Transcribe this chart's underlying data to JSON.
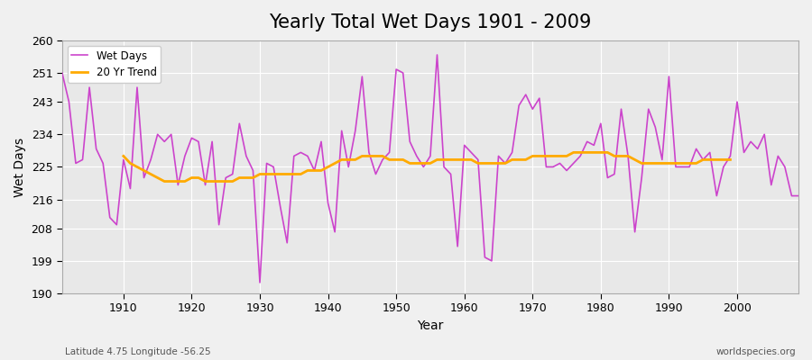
{
  "title": "Yearly Total Wet Days 1901 - 2009",
  "xlabel": "Year",
  "ylabel": "Wet Days",
  "footnote_left": "Latitude 4.75 Longitude -56.25",
  "footnote_right": "worldspecies.org",
  "legend_wet": "Wet Days",
  "legend_trend": "20 Yr Trend",
  "wet_color": "#cc44cc",
  "trend_color": "#ffaa00",
  "ylim": [
    190,
    260
  ],
  "yticks": [
    190,
    199,
    208,
    216,
    225,
    234,
    243,
    251,
    260
  ],
  "years": [
    1901,
    1902,
    1903,
    1904,
    1905,
    1906,
    1907,
    1908,
    1909,
    1910,
    1911,
    1912,
    1913,
    1914,
    1915,
    1916,
    1917,
    1918,
    1919,
    1920,
    1921,
    1922,
    1923,
    1924,
    1925,
    1926,
    1927,
    1928,
    1929,
    1930,
    1931,
    1932,
    1933,
    1934,
    1935,
    1936,
    1937,
    1938,
    1939,
    1940,
    1941,
    1942,
    1943,
    1944,
    1945,
    1946,
    1947,
    1948,
    1949,
    1950,
    1951,
    1952,
    1953,
    1954,
    1955,
    1956,
    1957,
    1958,
    1959,
    1960,
    1961,
    1962,
    1963,
    1964,
    1965,
    1966,
    1967,
    1968,
    1969,
    1970,
    1971,
    1972,
    1973,
    1974,
    1975,
    1976,
    1977,
    1978,
    1979,
    1980,
    1981,
    1982,
    1983,
    1984,
    1985,
    1986,
    1987,
    1988,
    1989,
    1990,
    1991,
    1992,
    1993,
    1994,
    1995,
    1996,
    1997,
    1998,
    1999,
    2000,
    2001,
    2002,
    2003,
    2004,
    2005,
    2006,
    2007,
    2008,
    2009
  ],
  "wet_days": [
    251,
    243,
    226,
    227,
    247,
    230,
    226,
    211,
    209,
    227,
    219,
    247,
    222,
    227,
    234,
    232,
    234,
    220,
    228,
    233,
    232,
    220,
    232,
    209,
    222,
    223,
    237,
    228,
    224,
    193,
    226,
    225,
    214,
    204,
    228,
    229,
    228,
    224,
    232,
    215,
    207,
    235,
    225,
    235,
    250,
    229,
    223,
    227,
    229,
    252,
    251,
    232,
    228,
    225,
    228,
    256,
    225,
    223,
    203,
    231,
    229,
    227,
    200,
    199,
    228,
    226,
    229,
    242,
    245,
    241,
    244,
    225,
    225,
    226,
    224,
    226,
    228,
    232,
    231,
    237,
    222,
    223,
    241,
    228,
    207,
    222,
    241,
    236,
    227,
    250,
    225,
    225,
    225,
    230,
    227,
    229,
    217,
    225,
    228,
    243,
    229,
    232,
    230,
    234,
    220,
    228,
    225,
    217,
    217
  ],
  "trend_years": [
    1910,
    1911,
    1912,
    1913,
    1914,
    1915,
    1916,
    1917,
    1918,
    1919,
    1920,
    1921,
    1922,
    1923,
    1924,
    1925,
    1926,
    1927,
    1928,
    1929,
    1930,
    1931,
    1932,
    1933,
    1934,
    1935,
    1936,
    1937,
    1938,
    1939,
    1940,
    1941,
    1942,
    1943,
    1944,
    1945,
    1946,
    1947,
    1948,
    1949,
    1950,
    1951,
    1952,
    1953,
    1954,
    1955,
    1956,
    1957,
    1958,
    1959,
    1960,
    1961,
    1962,
    1963,
    1964,
    1965,
    1966,
    1967,
    1968,
    1969,
    1970,
    1971,
    1972,
    1973,
    1974,
    1975,
    1976,
    1977,
    1978,
    1979,
    1980,
    1981,
    1982,
    1983,
    1984,
    1985,
    1986,
    1987,
    1988,
    1989,
    1990,
    1991,
    1992,
    1993,
    1994,
    1995,
    1996,
    1997,
    1998,
    1999
  ],
  "trend_vals": [
    228,
    226,
    225,
    224,
    223,
    222,
    221,
    221,
    221,
    221,
    222,
    222,
    221,
    221,
    221,
    221,
    221,
    222,
    222,
    222,
    223,
    223,
    223,
    223,
    223,
    223,
    223,
    224,
    224,
    224,
    225,
    226,
    227,
    227,
    227,
    228,
    228,
    228,
    228,
    227,
    227,
    227,
    226,
    226,
    226,
    226,
    227,
    227,
    227,
    227,
    227,
    227,
    226,
    226,
    226,
    226,
    226,
    227,
    227,
    227,
    228,
    228,
    228,
    228,
    228,
    228,
    229,
    229,
    229,
    229,
    229,
    229,
    228,
    228,
    228,
    227,
    226,
    226,
    226,
    226,
    226,
    226,
    226,
    226,
    226,
    227,
    227,
    227,
    227,
    227
  ]
}
